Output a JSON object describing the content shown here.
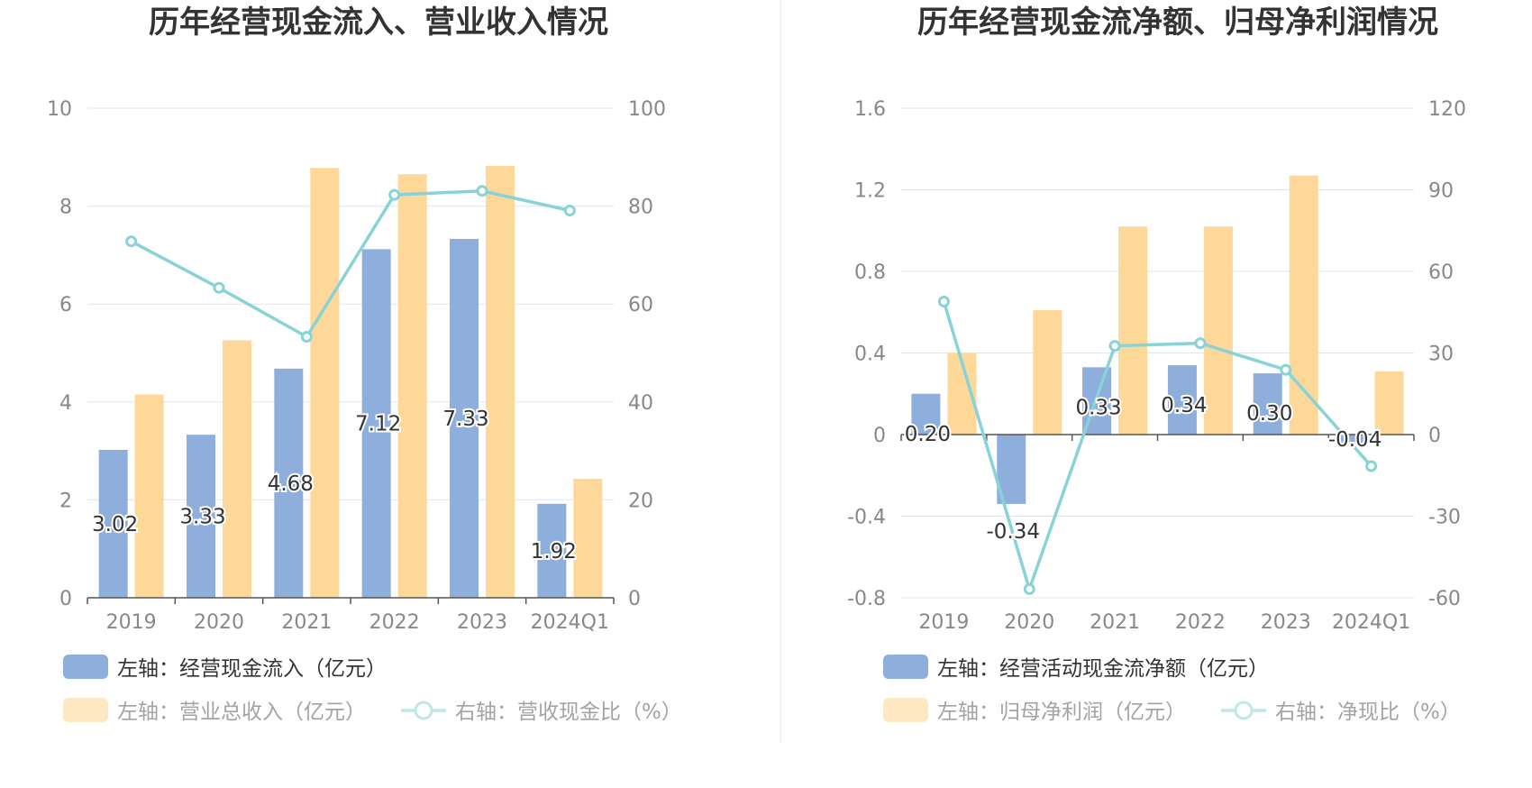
{
  "chart_data": [
    {
      "type": "bar",
      "title": "历年经营现金流入、营业收入情况",
      "categories": [
        "2019",
        "2020",
        "2021",
        "2022",
        "2023",
        "2024Q1"
      ],
      "left_axis": {
        "min": 0,
        "max": 10,
        "ticks": [
          "0",
          "2",
          "4",
          "6",
          "8",
          "10"
        ]
      },
      "right_axis": {
        "min": 0,
        "max": 100,
        "ticks": [
          "0",
          "20",
          "40",
          "60",
          "80",
          "100"
        ]
      },
      "series": [
        {
          "name": "左轴：经营现金流入（亿元）",
          "kind": "bar",
          "axis": "left",
          "color": "#8eaedc",
          "values": [
            3.02,
            3.33,
            4.68,
            7.12,
            7.33,
            1.92
          ],
          "labels": [
            "3.02",
            "3.33",
            "4.68",
            "7.12",
            "7.33",
            "1.92"
          ]
        },
        {
          "name": "左轴：营业总收入（亿元）",
          "kind": "bar",
          "axis": "left",
          "color": "#fed898",
          "values": [
            4.15,
            5.26,
            8.78,
            8.65,
            8.82,
            2.43
          ]
        },
        {
          "name": "右轴：营收现金比（%）",
          "kind": "line",
          "axis": "right",
          "color": "#88d3d8",
          "values": [
            72.8,
            63.3,
            53.3,
            82.3,
            83.1,
            79.1
          ]
        }
      ]
    },
    {
      "type": "bar",
      "title": "历年经营现金流净额、归母净利润情况",
      "categories": [
        "2019",
        "2020",
        "2021",
        "2022",
        "2023",
        "2024Q1"
      ],
      "left_axis": {
        "min": -0.8,
        "max": 1.6,
        "ticks": [
          "-0.8",
          "-0.4",
          "0",
          "0.4",
          "0.8",
          "1.2",
          "1.6"
        ]
      },
      "right_axis": {
        "min": -60,
        "max": 120,
        "ticks": [
          "-60",
          "-30",
          "0",
          "30",
          "60",
          "90",
          "120"
        ]
      },
      "series": [
        {
          "name": "左轴：经营活动现金流净额（亿元）",
          "kind": "bar",
          "axis": "left",
          "color": "#8eaedc",
          "values": [
            0.2,
            -0.34,
            0.33,
            0.34,
            0.3,
            -0.04
          ],
          "labels": [
            "0.20",
            "-0.34",
            "0.33",
            "0.34",
            "0.30",
            "-0.04"
          ]
        },
        {
          "name": "左轴：归母净利润（亿元）",
          "kind": "bar",
          "axis": "left",
          "color": "#fed898",
          "values": [
            0.4,
            0.61,
            1.02,
            1.02,
            1.27,
            0.31
          ]
        },
        {
          "name": "右轴：净现比（%）",
          "kind": "line",
          "axis": "right",
          "color": "#88d3d8",
          "values": [
            48.9,
            -56.8,
            32.6,
            33.6,
            23.8,
            -11.6
          ]
        }
      ]
    }
  ]
}
